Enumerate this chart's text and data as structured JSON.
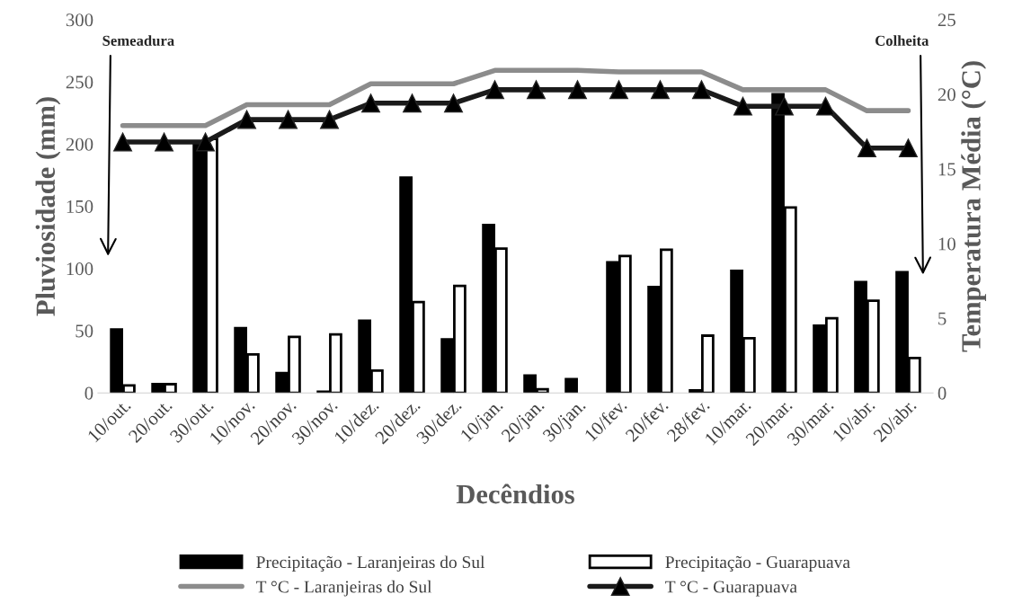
{
  "chart_data": {
    "type": "bar",
    "xlabel": "Decêndios",
    "ylabel": "Pluviosidade (mm)",
    "y2label": "Temperatura Média (°C)",
    "categories": [
      "10/out.",
      "20/out.",
      "30/out.",
      "10/nov.",
      "20/nov.",
      "30/nov.",
      "10/dez.",
      "20/dez.",
      "30/dez.",
      "10/jan.",
      "20/jan.",
      "30/jan.",
      "10/fev.",
      "20/fev.",
      "28/fev.",
      "10/mar.",
      "20/mar.",
      "30/mar.",
      "10/abr.",
      "20/abr."
    ],
    "series": [
      {
        "name": "Precipitação - Laranjeiras do Sul",
        "color": "#000000",
        "values": [
          51,
          7,
          200,
          52,
          16,
          1,
          58,
          173,
          43,
          135,
          14,
          11,
          105,
          85,
          2,
          98,
          240,
          54,
          89,
          97
        ]
      },
      {
        "name": "Precipitação - Guarapuava",
        "color": "#ffffff",
        "values": [
          6,
          7,
          204,
          31,
          45,
          47,
          18,
          73,
          86,
          116,
          3,
          null,
          110,
          115,
          46,
          44,
          149,
          60,
          74,
          28
        ]
      },
      {
        "name": "T °C - Laranjeiras do Sul",
        "type": "line",
        "axis": "y2",
        "color": "#8c8c8c",
        "marker": "none",
        "values": [
          17.9,
          17.9,
          17.9,
          19.3,
          19.3,
          19.3,
          20.7,
          20.7,
          20.7,
          21.6,
          21.6,
          21.6,
          21.5,
          21.5,
          21.5,
          20.3,
          20.3,
          20.3,
          18.9,
          18.9
        ]
      },
      {
        "name": "T °C - Guarapuava",
        "type": "line",
        "axis": "y2",
        "color": "#1a1a1a",
        "marker": "triangle",
        "values": [
          16.8,
          16.8,
          16.8,
          18.3,
          18.3,
          18.3,
          19.4,
          19.4,
          19.4,
          20.3,
          20.3,
          20.3,
          20.3,
          20.3,
          20.3,
          19.2,
          19.2,
          19.2,
          16.4,
          16.4
        ]
      }
    ],
    "ylim": [
      0,
      300
    ],
    "yticks": [
      0,
      50,
      100,
      150,
      200,
      250,
      300
    ],
    "y2lim": [
      0,
      25
    ],
    "y2ticks": [
      0,
      5,
      10,
      15,
      20,
      25
    ],
    "annotations": [
      "Semeadura",
      "Colheita"
    ],
    "grid": false,
    "legend": "bottom"
  }
}
